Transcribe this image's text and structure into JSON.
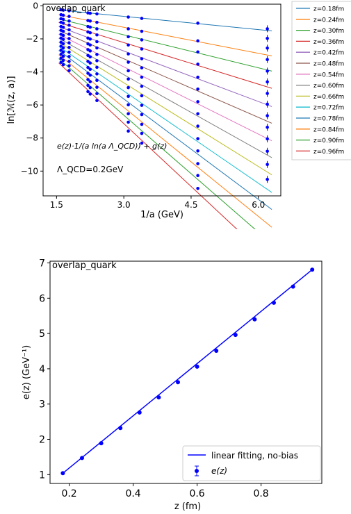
{
  "chart_data": [
    {
      "type": "line",
      "title": "overlap_quark",
      "xlabel": "1/a (GeV)",
      "ylabel": "ln[ℳ(z, a)]",
      "xlim": [
        1.2,
        6.5
      ],
      "ylim": [
        -11.5,
        0.1
      ],
      "xticks": [
        "1.5",
        "3.0",
        "4.5",
        "6.0"
      ],
      "xtick_values": [
        1.5,
        3.0,
        4.5,
        6.0
      ],
      "yticks": [
        "0",
        "−2",
        "−4",
        "−6",
        "−8",
        "−10"
      ],
      "ytick_values": [
        0,
        -2,
        -4,
        -6,
        -8,
        -10
      ],
      "legend_position": "outside-right",
      "annotation_formula": "e(z)·1/(a ln(a Λ_QCD)) + g(z)",
      "annotation_lambda": "Λ_QCD=0.2GeV",
      "x": [
        1.6,
        1.65,
        1.78,
        2.2,
        2.25,
        2.4,
        3.1,
        3.4,
        4.65,
        6.2
      ],
      "series": [
        {
          "name": "z=0.18fm",
          "color": "#1f77b4",
          "y": [
            -0.24,
            -0.26,
            -0.3,
            -0.43,
            -0.45,
            -0.49,
            -0.68,
            -0.76,
            -1.05,
            -1.39
          ]
        },
        {
          "name": "z=0.24fm",
          "color": "#ff7f0e",
          "y": [
            -0.54,
            -0.57,
            -0.64,
            -0.89,
            -0.92,
            -1.0,
            -1.39,
            -1.54,
            -2.12,
            -1.97
          ]
        },
        {
          "name": "z=0.30fm",
          "color": "#2ca02c",
          "y": [
            -0.78,
            -0.82,
            -0.92,
            -1.25,
            -1.29,
            -1.39,
            -1.87,
            -2.06,
            -2.79,
            -2.56
          ]
        },
        {
          "name": "z=0.36fm",
          "color": "#d62728",
          "y": [
            -1.0,
            -1.05,
            -1.17,
            -1.58,
            -1.63,
            -1.76,
            -2.37,
            -2.61,
            -3.53,
            -3.25
          ]
        },
        {
          "name": "z=0.42fm",
          "color": "#9467bd",
          "y": [
            -1.25,
            -1.3,
            -1.45,
            -1.95,
            -2.01,
            -2.17,
            -2.91,
            -3.2,
            -4.32,
            -3.95
          ]
        },
        {
          "name": "z=0.48fm",
          "color": "#8c564b",
          "y": [
            -1.48,
            -1.54,
            -1.71,
            -2.3,
            -2.37,
            -2.55,
            -3.41,
            -3.75,
            -5.04,
            -4.6
          ]
        },
        {
          "name": "z=0.54fm",
          "color": "#e377c2",
          "y": [
            -1.72,
            -1.79,
            -1.98,
            -2.65,
            -2.73,
            -2.94,
            -3.93,
            -4.32,
            -5.8,
            -5.3
          ]
        },
        {
          "name": "z=0.60fm",
          "color": "#7f7f7f",
          "y": [
            -1.95,
            -2.03,
            -2.24,
            -3.0,
            -3.09,
            -3.32,
            -4.43,
            -4.87,
            -6.53,
            -5.95
          ]
        },
        {
          "name": "z=0.66fm",
          "color": "#bcbd22",
          "y": [
            -2.2,
            -2.29,
            -2.52,
            -3.36,
            -3.46,
            -3.72,
            -4.95,
            -5.44,
            -7.28,
            -6.65
          ]
        },
        {
          "name": "z=0.72fm",
          "color": "#17becf",
          "y": [
            -2.44,
            -2.54,
            -2.8,
            -3.73,
            -3.84,
            -4.12,
            -5.48,
            -6.02,
            -8.04,
            -7.35
          ]
        },
        {
          "name": "z=0.78fm",
          "color": "#1f77b4",
          "y": [
            -2.68,
            -2.79,
            -3.07,
            -4.08,
            -4.2,
            -4.51,
            -5.99,
            -6.58,
            -8.78,
            -8.05
          ]
        },
        {
          "name": "z=0.84fm",
          "color": "#ff7f0e",
          "y": [
            -2.93,
            -3.05,
            -3.36,
            -4.46,
            -4.59,
            -4.93,
            -6.53,
            -7.17,
            -9.55,
            -8.8
          ]
        },
        {
          "name": "z=0.90fm",
          "color": "#2ca02c",
          "y": [
            -3.17,
            -3.3,
            -3.63,
            -4.81,
            -4.95,
            -5.31,
            -7.04,
            -7.72,
            -10.27,
            -9.6
          ]
        },
        {
          "name": "z=0.96fm",
          "color": "#d62728",
          "y": [
            -3.42,
            -3.56,
            -3.92,
            -5.19,
            -5.34,
            -5.73,
            -7.58,
            -8.31,
            -11.05,
            -10.5
          ]
        }
      ]
    },
    {
      "type": "scatter",
      "title": "overlap_quark",
      "xlabel": "z (fm)",
      "ylabel": "e(z) (GeV⁻¹)",
      "xlim": [
        0.14,
        0.99
      ],
      "ylim": [
        0.75,
        7.05
      ],
      "xticks": [
        "0.2",
        "0.4",
        "0.6",
        "0.8"
      ],
      "xtick_values": [
        0.2,
        0.4,
        0.6,
        0.8
      ],
      "yticks": [
        "1",
        "2",
        "3",
        "4",
        "5",
        "6",
        "7"
      ],
      "ytick_values": [
        1,
        2,
        3,
        4,
        5,
        6,
        7
      ],
      "legend_position": "lower-right",
      "legend": [
        "linear fitting, no-bias",
        "e(z)"
      ],
      "fit_line": {
        "name": "linear fitting, no-bias",
        "x": [
          0.18,
          0.96
        ],
        "y": [
          1.04,
          6.81
        ],
        "color": "#0000ff"
      },
      "points": {
        "name": "e(z)",
        "color": "#0000ff",
        "x": [
          0.18,
          0.24,
          0.3,
          0.36,
          0.42,
          0.48,
          0.54,
          0.6,
          0.66,
          0.72,
          0.78,
          0.84,
          0.9,
          0.96
        ],
        "y": [
          1.04,
          1.47,
          1.89,
          2.32,
          2.76,
          3.19,
          3.62,
          4.06,
          4.51,
          4.96,
          5.4,
          5.87,
          6.33,
          6.81
        ]
      }
    }
  ]
}
